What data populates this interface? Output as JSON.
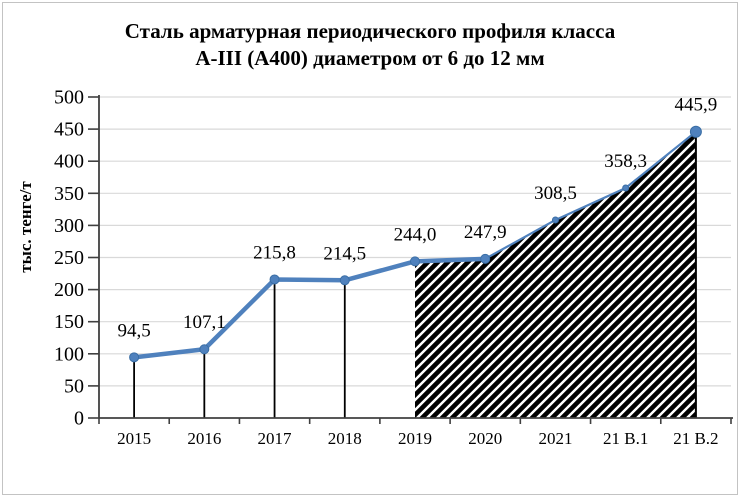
{
  "chart_data": {
    "type": "line",
    "title_lines": [
      "Сталь арматурная периодического профиля класса",
      "А-III (А400) диаметром от 6 до 12 мм"
    ],
    "ylabel": "тыс. тенге/т",
    "xlabel": "",
    "categories": [
      "2015",
      "2016",
      "2017",
      "2018",
      "2019",
      "2020",
      "2021",
      "21 В.1",
      "21 В.2"
    ],
    "values": [
      94.5,
      107.1,
      215.8,
      214.5,
      244.0,
      247.9,
      308.5,
      358.3,
      445.9
    ],
    "data_labels": [
      "94,5",
      "107,1",
      "215,8",
      "214,5",
      "244,0",
      "247,9",
      "308,5",
      "358,3",
      "445,9"
    ],
    "ylim": [
      0,
      500
    ],
    "ytick_step": 50,
    "ytick_labels": [
      "0",
      "50",
      "100",
      "150",
      "200",
      "250",
      "300",
      "350",
      "400",
      "450",
      "500"
    ],
    "grid": true,
    "legend": "none",
    "style_hints": {
      "drop_line_indices": [
        0,
        1,
        2,
        3
      ],
      "hatch_area_from_index": 4,
      "thin_line_from_index": 5,
      "small_marker_indices": [
        6,
        7
      ],
      "large_marker_index": 8
    },
    "colors": {
      "line": "#4f81bd",
      "marker_fill": "#4f81bd",
      "marker_edge": "#3a6ea5",
      "grid": "#d9d9d9",
      "axis": "#404040",
      "drop_line": "#000000",
      "hatch": "#000000",
      "text": "#000000",
      "page_border": "#c3c3c3"
    }
  }
}
